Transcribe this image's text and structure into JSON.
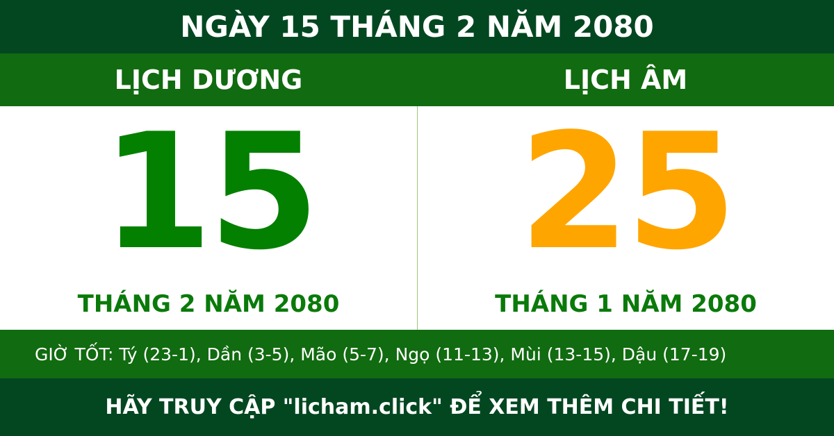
{
  "header": {
    "title": "NGÀY 15 THÁNG 2 NĂM 2080"
  },
  "solar": {
    "label": "LỊCH DƯƠNG",
    "day": "15",
    "month_year": "THÁNG 2 NĂM 2080",
    "color": "#048000"
  },
  "lunar": {
    "label": "LỊCH ÂM",
    "day": "25",
    "month_year": "THÁNG 1 NĂM 2080",
    "color": "#ffa500"
  },
  "good_hours": "GIỜ TỐT: Tý (23-1), Dần (3-5), Mão (5-7), Ngọ (11-13), Mùi (13-15), Dậu (17-19)",
  "footer": "HÃY TRUY CẬP \"licham.click\" ĐỂ XEM THÊM CHI TIẾT!"
}
